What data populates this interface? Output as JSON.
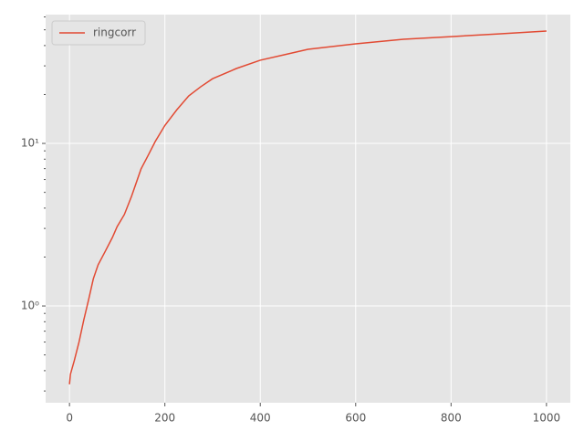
{
  "chart_data": {
    "type": "line",
    "x": [
      0,
      2,
      10,
      20,
      30,
      40,
      50,
      60,
      75,
      90,
      100,
      115,
      130,
      150,
      165,
      180,
      200,
      225,
      250,
      275,
      300,
      350,
      400,
      450,
      500,
      600,
      700,
      800,
      900,
      1000
    ],
    "series": [
      {
        "name": "ringcorr",
        "color": "#e24a33",
        "values": [
          0.33,
          0.38,
          0.46,
          0.6,
          0.82,
          1.09,
          1.47,
          1.79,
          2.17,
          2.64,
          3.08,
          3.65,
          4.72,
          6.96,
          8.45,
          10.3,
          12.9,
          16.1,
          19.6,
          22.3,
          25,
          28.9,
          32.5,
          35.1,
          37.9,
          41,
          43.7,
          45.4,
          47.2,
          49.1
        ]
      }
    ],
    "xlim": [
      -50,
      1050
    ],
    "xticks": [
      0,
      200,
      400,
      600,
      800,
      1000
    ],
    "ylim": [
      0.254,
      62
    ],
    "log_y": true,
    "yticks": [
      {
        "value": 1,
        "label": "10⁰"
      },
      {
        "value": 10,
        "label": "10¹"
      }
    ],
    "yminorticks": [
      0.3,
      0.4,
      0.5,
      0.6,
      0.7,
      0.8,
      0.9,
      2,
      3,
      4,
      5,
      6,
      7,
      8,
      9,
      20,
      30,
      40,
      50,
      60
    ],
    "grid": true,
    "legend": "upper left"
  }
}
